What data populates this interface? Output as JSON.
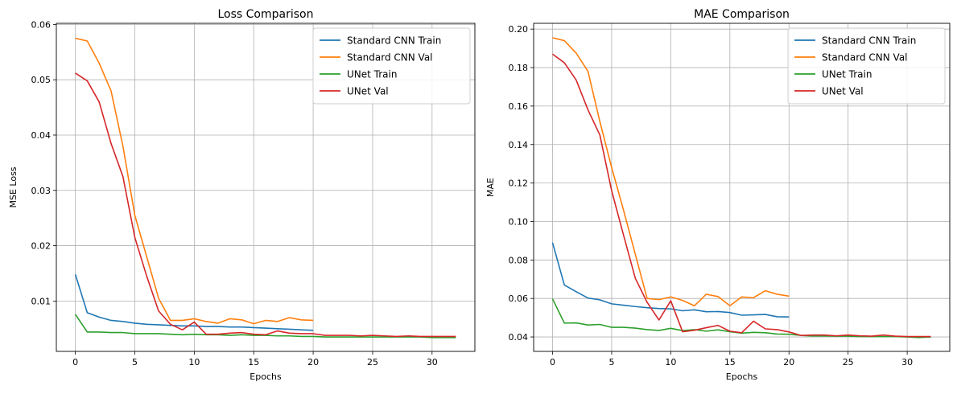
{
  "chart_data": [
    {
      "type": "line",
      "title": "Loss Comparison",
      "xlabel": "Epochs",
      "ylabel": "MSE Loss",
      "xlim": [
        -1.6,
        33.6
      ],
      "ylim": [
        0.0009,
        0.0602
      ],
      "xticks": [
        0,
        5,
        10,
        15,
        20,
        25,
        30
      ],
      "xtick_labels": [
        "0",
        "5",
        "10",
        "15",
        "20",
        "25",
        "30"
      ],
      "yticks": [
        0.01,
        0.02,
        0.03,
        0.04,
        0.05,
        0.06
      ],
      "ytick_labels": [
        "0.01",
        "0.02",
        "0.03",
        "0.04",
        "0.05",
        "0.06"
      ],
      "grid": true,
      "legend": "upper-right",
      "series": [
        {
          "name": "Standard CNN Train",
          "color": "#1f77b4",
          "values": [
            0.0148,
            0.0079,
            0.0071,
            0.0065,
            0.0063,
            0.006,
            0.0058,
            0.0057,
            0.0056,
            0.0055,
            0.0055,
            0.0054,
            0.0054,
            0.0053,
            0.0053,
            0.0052,
            0.0051,
            0.005,
            0.0049,
            0.0048,
            0.0047
          ]
        },
        {
          "name": "Standard CNN Val",
          "color": "#ff7f0e",
          "values": [
            0.0575,
            0.057,
            0.053,
            0.048,
            0.038,
            0.0255,
            0.018,
            0.0105,
            0.0065,
            0.0065,
            0.0068,
            0.0063,
            0.006,
            0.0068,
            0.0066,
            0.0059,
            0.0065,
            0.0063,
            0.007,
            0.0066,
            0.0065
          ]
        },
        {
          "name": "UNet Train",
          "color": "#2ca02c",
          "values": [
            0.0076,
            0.0044,
            0.0044,
            0.0043,
            0.0043,
            0.0041,
            0.0041,
            0.0041,
            0.004,
            0.0039,
            0.004,
            0.0039,
            0.0039,
            0.0038,
            0.0039,
            0.0038,
            0.0038,
            0.0037,
            0.0037,
            0.0036,
            0.0036,
            0.0035,
            0.0035,
            0.0035,
            0.0035,
            0.0035,
            0.0035,
            0.0035,
            0.0035,
            0.0035,
            0.0034,
            0.0034,
            0.0034
          ]
        },
        {
          "name": "UNet Val",
          "color": "#d62728",
          "values": [
            0.0512,
            0.0498,
            0.046,
            0.0385,
            0.0325,
            0.0215,
            0.0145,
            0.0082,
            0.0058,
            0.0048,
            0.0062,
            0.004,
            0.004,
            0.0042,
            0.0043,
            0.004,
            0.0039,
            0.0046,
            0.0042,
            0.0041,
            0.0041,
            0.0038,
            0.0038,
            0.0038,
            0.0037,
            0.0038,
            0.0037,
            0.0036,
            0.0037,
            0.0036,
            0.0036,
            0.0036,
            0.0036
          ]
        }
      ]
    },
    {
      "type": "line",
      "title": "MAE Comparison",
      "xlabel": "Epochs",
      "ylabel": "MAE",
      "xlim": [
        -1.6,
        33.6
      ],
      "ylim": [
        0.0325,
        0.203
      ],
      "xticks": [
        0,
        5,
        10,
        15,
        20,
        25,
        30
      ],
      "xtick_labels": [
        "0",
        "5",
        "10",
        "15",
        "20",
        "25",
        "30"
      ],
      "yticks": [
        0.04,
        0.06,
        0.08,
        0.1,
        0.12,
        0.14,
        0.16,
        0.18,
        0.2
      ],
      "ytick_labels": [
        "0.04",
        "0.06",
        "0.08",
        "0.10",
        "0.12",
        "0.14",
        "0.16",
        "0.18",
        "0.20"
      ],
      "grid": true,
      "legend": "upper-right",
      "series": [
        {
          "name": "Standard CNN Train",
          "color": "#1f77b4",
          "values": [
            0.089,
            0.067,
            0.0635,
            0.0602,
            0.0593,
            0.0572,
            0.0565,
            0.0558,
            0.0552,
            0.0548,
            0.0546,
            0.0536,
            0.0541,
            0.0531,
            0.0532,
            0.0527,
            0.0513,
            0.0515,
            0.0517,
            0.0505,
            0.0504
          ]
        },
        {
          "name": "Standard CNN Val",
          "color": "#ff7f0e",
          "values": [
            0.1955,
            0.194,
            0.1875,
            0.178,
            0.152,
            0.128,
            0.106,
            0.083,
            0.06,
            0.0594,
            0.0608,
            0.059,
            0.0562,
            0.0622,
            0.061,
            0.0562,
            0.0608,
            0.0604,
            0.064,
            0.0622,
            0.0612
          ]
        },
        {
          "name": "UNet Train",
          "color": "#2ca02c",
          "values": [
            0.0598,
            0.0472,
            0.0473,
            0.0462,
            0.0465,
            0.045,
            0.045,
            0.0446,
            0.0438,
            0.0434,
            0.0445,
            0.0433,
            0.0438,
            0.043,
            0.0437,
            0.0427,
            0.042,
            0.0424,
            0.0422,
            0.0415,
            0.0414,
            0.0408,
            0.0405,
            0.0405,
            0.0404,
            0.0404,
            0.0402,
            0.0402,
            0.0402,
            0.0402,
            0.04,
            0.0397,
            0.04
          ]
        },
        {
          "name": "UNet Val",
          "color": "#d62728",
          "values": [
            0.187,
            0.1825,
            0.1735,
            0.158,
            0.145,
            0.116,
            0.093,
            0.0705,
            0.058,
            0.0488,
            0.0588,
            0.0427,
            0.0435,
            0.0448,
            0.046,
            0.043,
            0.0422,
            0.0482,
            0.0442,
            0.0438,
            0.0426,
            0.0408,
            0.041,
            0.041,
            0.0406,
            0.041,
            0.0406,
            0.0404,
            0.041,
            0.0404,
            0.0402,
            0.0402,
            0.0402
          ]
        }
      ]
    }
  ]
}
